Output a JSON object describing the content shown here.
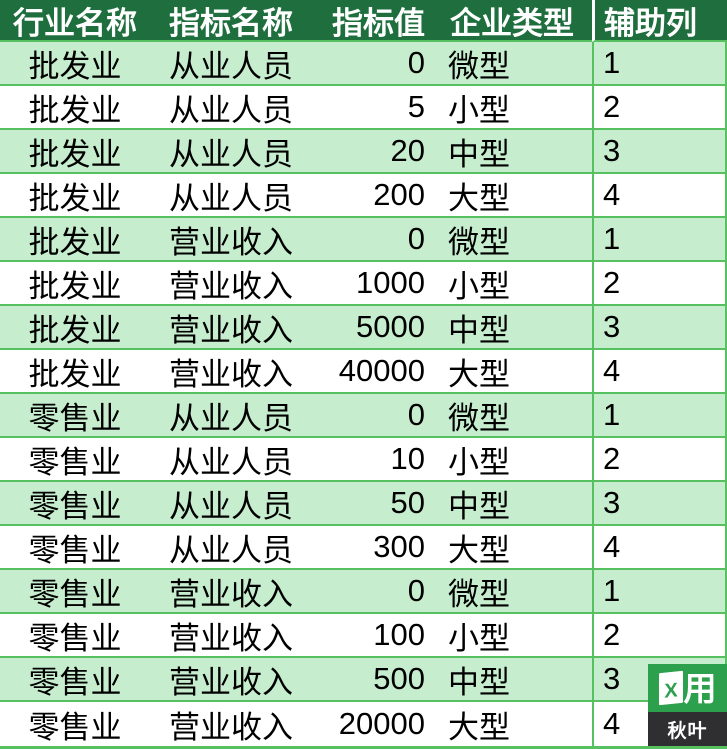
{
  "colors": {
    "header_bg": "#1F6E3E",
    "header_text": "#FFFFFF",
    "row_alt_bg": "#C6EECE",
    "row_bg": "#FFFFFF",
    "grid_line": "#56C15F",
    "divider_header": "#FFFFFF",
    "text": "#000000",
    "logo_green": "#2CA04C",
    "logo_band": "#2F2F31",
    "logo_text": "#FFFFFF"
  },
  "table": {
    "columns": [
      {
        "key": "industry-name",
        "label": "行业名称"
      },
      {
        "key": "indicator-name",
        "label": "指标名称"
      },
      {
        "key": "indicator-value",
        "label": "指标值"
      },
      {
        "key": "company-type",
        "label": "企业类型"
      },
      {
        "key": "helper-column",
        "label": "辅助列"
      }
    ],
    "rows": [
      [
        "批发业",
        "从业人员",
        "0",
        "微型",
        "1"
      ],
      [
        "批发业",
        "从业人员",
        "5",
        "小型",
        "2"
      ],
      [
        "批发业",
        "从业人员",
        "20",
        "中型",
        "3"
      ],
      [
        "批发业",
        "从业人员",
        "200",
        "大型",
        "4"
      ],
      [
        "批发业",
        "营业收入",
        "0",
        "微型",
        "1"
      ],
      [
        "批发业",
        "营业收入",
        "1000",
        "小型",
        "2"
      ],
      [
        "批发业",
        "营业收入",
        "5000",
        "中型",
        "3"
      ],
      [
        "批发业",
        "营业收入",
        "40000",
        "大型",
        "4"
      ],
      [
        "零售业",
        "从业人员",
        "0",
        "微型",
        "1"
      ],
      [
        "零售业",
        "从业人员",
        "10",
        "小型",
        "2"
      ],
      [
        "零售业",
        "从业人员",
        "50",
        "中型",
        "3"
      ],
      [
        "零售业",
        "从业人员",
        "300",
        "大型",
        "4"
      ],
      [
        "零售业",
        "营业收入",
        "0",
        "微型",
        "1"
      ],
      [
        "零售业",
        "营业收入",
        "100",
        "小型",
        "2"
      ],
      [
        "零售业",
        "营业收入",
        "500",
        "中型",
        "3"
      ],
      [
        "零售业",
        "营业收入",
        "20000",
        "大型",
        "4"
      ]
    ]
  },
  "watermark": {
    "sheet_letter": "X",
    "grid_glyph": "用",
    "brand_name": "秋叶"
  }
}
